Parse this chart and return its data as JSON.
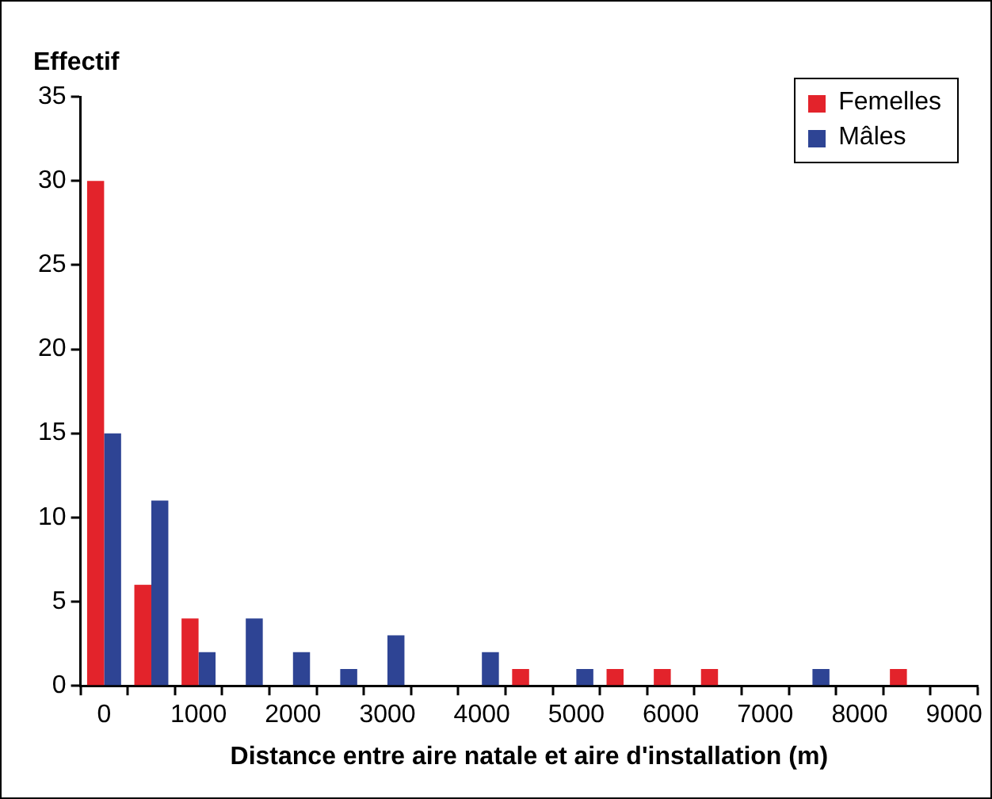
{
  "chart_data": {
    "type": "bar",
    "ylabel": "Effectif",
    "xlabel": "Distance entre aire natale et aire d'installation (m)",
    "categories": [
      "0",
      null,
      "1000",
      null,
      "2000",
      null,
      "3000",
      null,
      "4000",
      null,
      "5000",
      null,
      "6000",
      null,
      "7000",
      null,
      "8000",
      null,
      "9000"
    ],
    "series": [
      {
        "name": "Femelles",
        "color": "#e3232b",
        "values": [
          30,
          6,
          4,
          0,
          0,
          0,
          0,
          0,
          0,
          1,
          0,
          1,
          1,
          1,
          0,
          0,
          0,
          1,
          0
        ]
      },
      {
        "name": "Mâles",
        "color": "#2e4494",
        "values": [
          15,
          11,
          2,
          4,
          2,
          1,
          3,
          0,
          2,
          0,
          1,
          0,
          0,
          0,
          0,
          1,
          0,
          0,
          0
        ]
      }
    ],
    "ylim": [
      0,
      35
    ],
    "yticks": [
      0,
      5,
      10,
      15,
      20,
      25,
      30,
      35
    ],
    "grid": false,
    "legend": "top right"
  }
}
